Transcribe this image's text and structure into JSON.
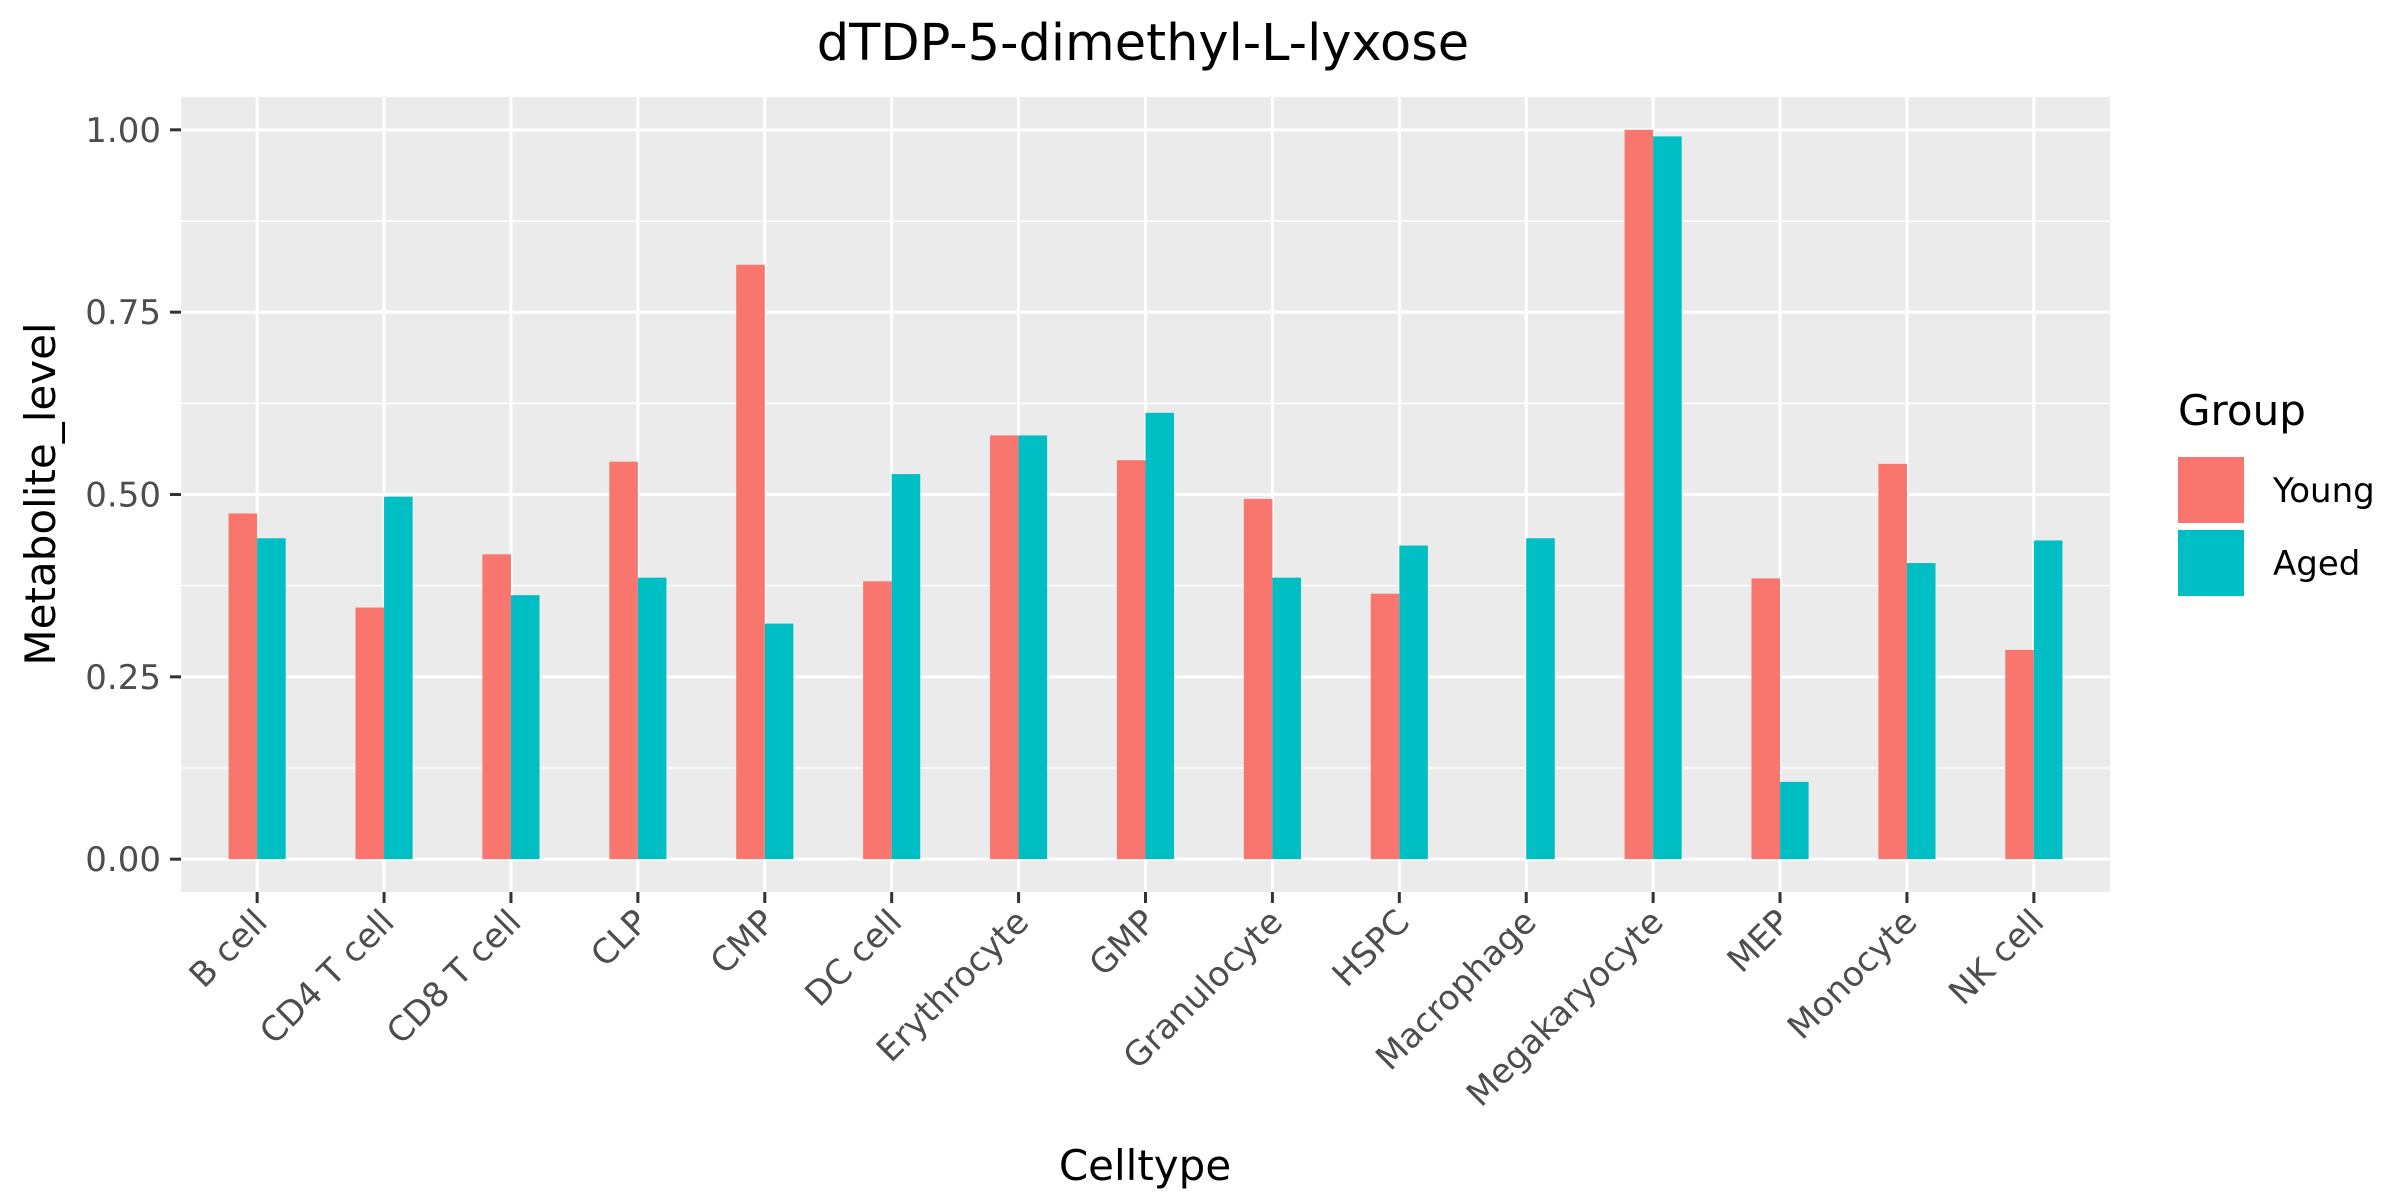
{
  "chart_data": {
    "type": "bar",
    "title": "dTDP-5-dimethyl-L-lyxose",
    "xlabel": "Celltype",
    "ylabel": "Metabolite_level",
    "ylim": [
      -0.045,
      1.045
    ],
    "yticks": [
      0.0,
      0.25,
      0.5,
      0.75,
      1.0
    ],
    "ytick_labels": [
      "0.00",
      "0.25",
      "0.50",
      "0.75",
      "1.00"
    ],
    "grid": true,
    "legend": {
      "title": "Group",
      "position": "right"
    },
    "categories": [
      "B cell",
      "CD4 T cell",
      "CD8 T cell",
      "CLP",
      "CMP",
      "DC cell",
      "Erythrocyte",
      "GMP",
      "Granulocyte",
      "HSPC",
      "Macrophage",
      "Megakaryocyte",
      "MEP",
      "Monocyte",
      "NK cell"
    ],
    "series": [
      {
        "name": "Young",
        "color": "#F8766D",
        "values": [
          0.474,
          0.345,
          0.418,
          0.545,
          0.815,
          0.381,
          0.581,
          0.547,
          0.494,
          0.364,
          null,
          1.0,
          0.385,
          0.542,
          0.287
        ]
      },
      {
        "name": "Aged",
        "color": "#00BFC4",
        "values": [
          0.44,
          0.497,
          0.362,
          0.386,
          0.323,
          0.528,
          0.581,
          0.612,
          0.386,
          0.43,
          0.44,
          0.991,
          0.106,
          0.406,
          0.437
        ]
      }
    ]
  },
  "colors": {
    "panel_background": "#EBEBEB",
    "grid_line": "#FFFFFF",
    "tick_mark": "#333333"
  }
}
